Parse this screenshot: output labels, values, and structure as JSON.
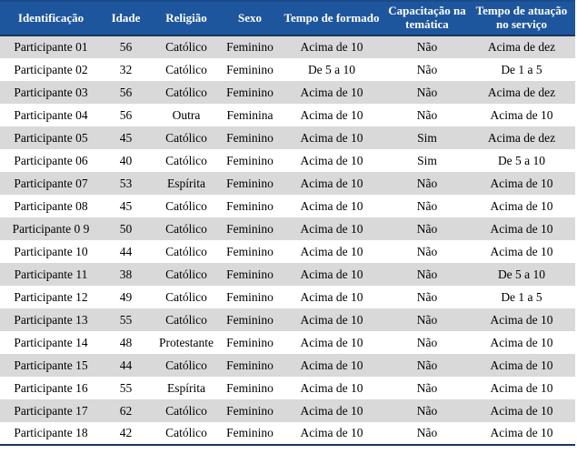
{
  "colors": {
    "header_bg": "#1E569E",
    "header_border": "#17365D",
    "row_alt": "#D9D9D9"
  },
  "table": {
    "columns": [
      "Identificação",
      "Idade",
      "Religião",
      "Sexo",
      "Tempo de formado",
      "Capacitação na temática",
      "Tempo de atuação no serviço"
    ],
    "rows": [
      [
        "Participante 01",
        "56",
        "Católico",
        "Feminino",
        "Acima de 10",
        "Não",
        "Acima de dez"
      ],
      [
        "Participante 02",
        "32",
        "Católico",
        "Feminino",
        "De 5 a 10",
        "Não",
        "De 1 a 5"
      ],
      [
        "Participante 03",
        "56",
        "Católico",
        "Feminino",
        "Acima de 10",
        "Não",
        "Acima de dez"
      ],
      [
        "Participante 04",
        "56",
        "Outra",
        "Feminina",
        "Acima de 10",
        "Não",
        "Acima de 10"
      ],
      [
        "Participante 05",
        "45",
        "Católico",
        "Feminino",
        "Acima de 10",
        "Sim",
        "Acima de dez"
      ],
      [
        "Participante 06",
        "40",
        "Católico",
        "Feminino",
        "Acima de 10",
        "Sim",
        "De 5 a 10"
      ],
      [
        "Participante 07",
        "53",
        "Espírita",
        "Feminino",
        "Acima de 10",
        "Não",
        "Acima de 10"
      ],
      [
        "Participante 08",
        "45",
        "Católico",
        "Feminino",
        "Acima de 10",
        "Não",
        "Acima de 10"
      ],
      [
        "Participante 0 9",
        "50",
        "Católico",
        "Feminino",
        "Acima de 10",
        "Não",
        "Acima de 10"
      ],
      [
        "Participante 10",
        "44",
        "Católico",
        "Feminino",
        "Acima de 10",
        "Não",
        "Acima de 10"
      ],
      [
        "Participante 11",
        "38",
        "Católico",
        "Feminino",
        "Acima de 10",
        "Não",
        "De 5 a 10"
      ],
      [
        "Participante 12",
        "49",
        "Católico",
        "Feminino",
        "Acima de 10",
        "Não",
        "De 1 a 5"
      ],
      [
        "Participante 13",
        "55",
        "Católico",
        "Feminino",
        "Acima de 10",
        "Não",
        "Acima de 10"
      ],
      [
        "Participante 14",
        "48",
        "Protestante",
        "Feminino",
        "Acima de 10",
        "Não",
        "Acima de 10"
      ],
      [
        "Participante 15",
        "44",
        "Católico",
        "Feminino",
        "Acima de 10",
        "Não",
        "Acima de 10"
      ],
      [
        "Participante 16",
        "55",
        "Espírita",
        "Feminino",
        "Acima de 10",
        "Não",
        "Acima de 10"
      ],
      [
        "Participante 17",
        "62",
        "Católico",
        "Feminino",
        "Acima de 10",
        "Não",
        "Acima de 10"
      ],
      [
        "Participante 18",
        "42",
        "Católico",
        "Feminino",
        "Acima de 10",
        "Não",
        "Acima de 10"
      ]
    ]
  }
}
